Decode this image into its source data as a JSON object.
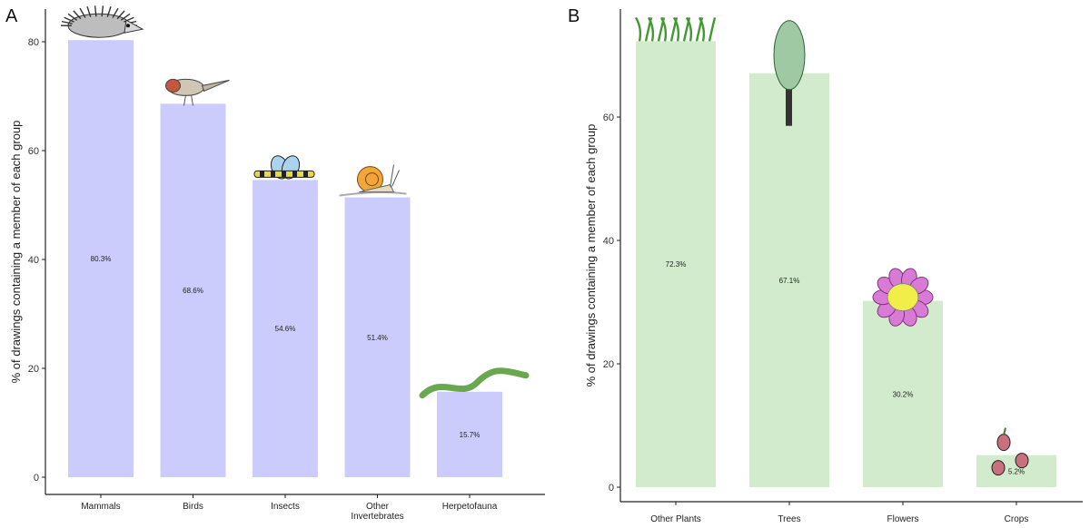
{
  "chart_data": [
    {
      "panel": "A",
      "type": "bar",
      "color": "#ccccfc",
      "ylabel": "% of drawings containing a member of each group",
      "ylim": [
        0,
        84
      ],
      "yticks": [
        0,
        20,
        40,
        60,
        80
      ],
      "categories": [
        "Mammals",
        "Birds",
        "Insects",
        "Other\nInvertebrates",
        "Herpetofauna"
      ],
      "values": [
        80.3,
        68.6,
        54.6,
        51.4,
        15.7
      ],
      "value_labels": [
        "80.3%",
        "68.6%",
        "54.6%",
        "51.4%",
        "15.7%"
      ],
      "illustrations": [
        "hedgehog-drawing",
        "bird-drawing",
        "insect-drawing",
        "snail-drawing",
        "snake-drawing"
      ]
    },
    {
      "panel": "B",
      "type": "bar",
      "color": "#d2ebcc",
      "ylabel": "% of drawings containing a member of each group",
      "ylim": [
        0,
        75
      ],
      "yticks": [
        0,
        20,
        40,
        60
      ],
      "categories": [
        "Other Plants",
        "Trees",
        "Flowers",
        "Crops"
      ],
      "values": [
        72.3,
        67.1,
        30.2,
        5.2
      ],
      "value_labels": [
        "72.3%",
        "67.1%",
        "30.2%",
        "5.2%"
      ],
      "illustrations": [
        "grass-drawing",
        "tree-drawing",
        "flower-drawing",
        "crops-drawing"
      ]
    }
  ]
}
